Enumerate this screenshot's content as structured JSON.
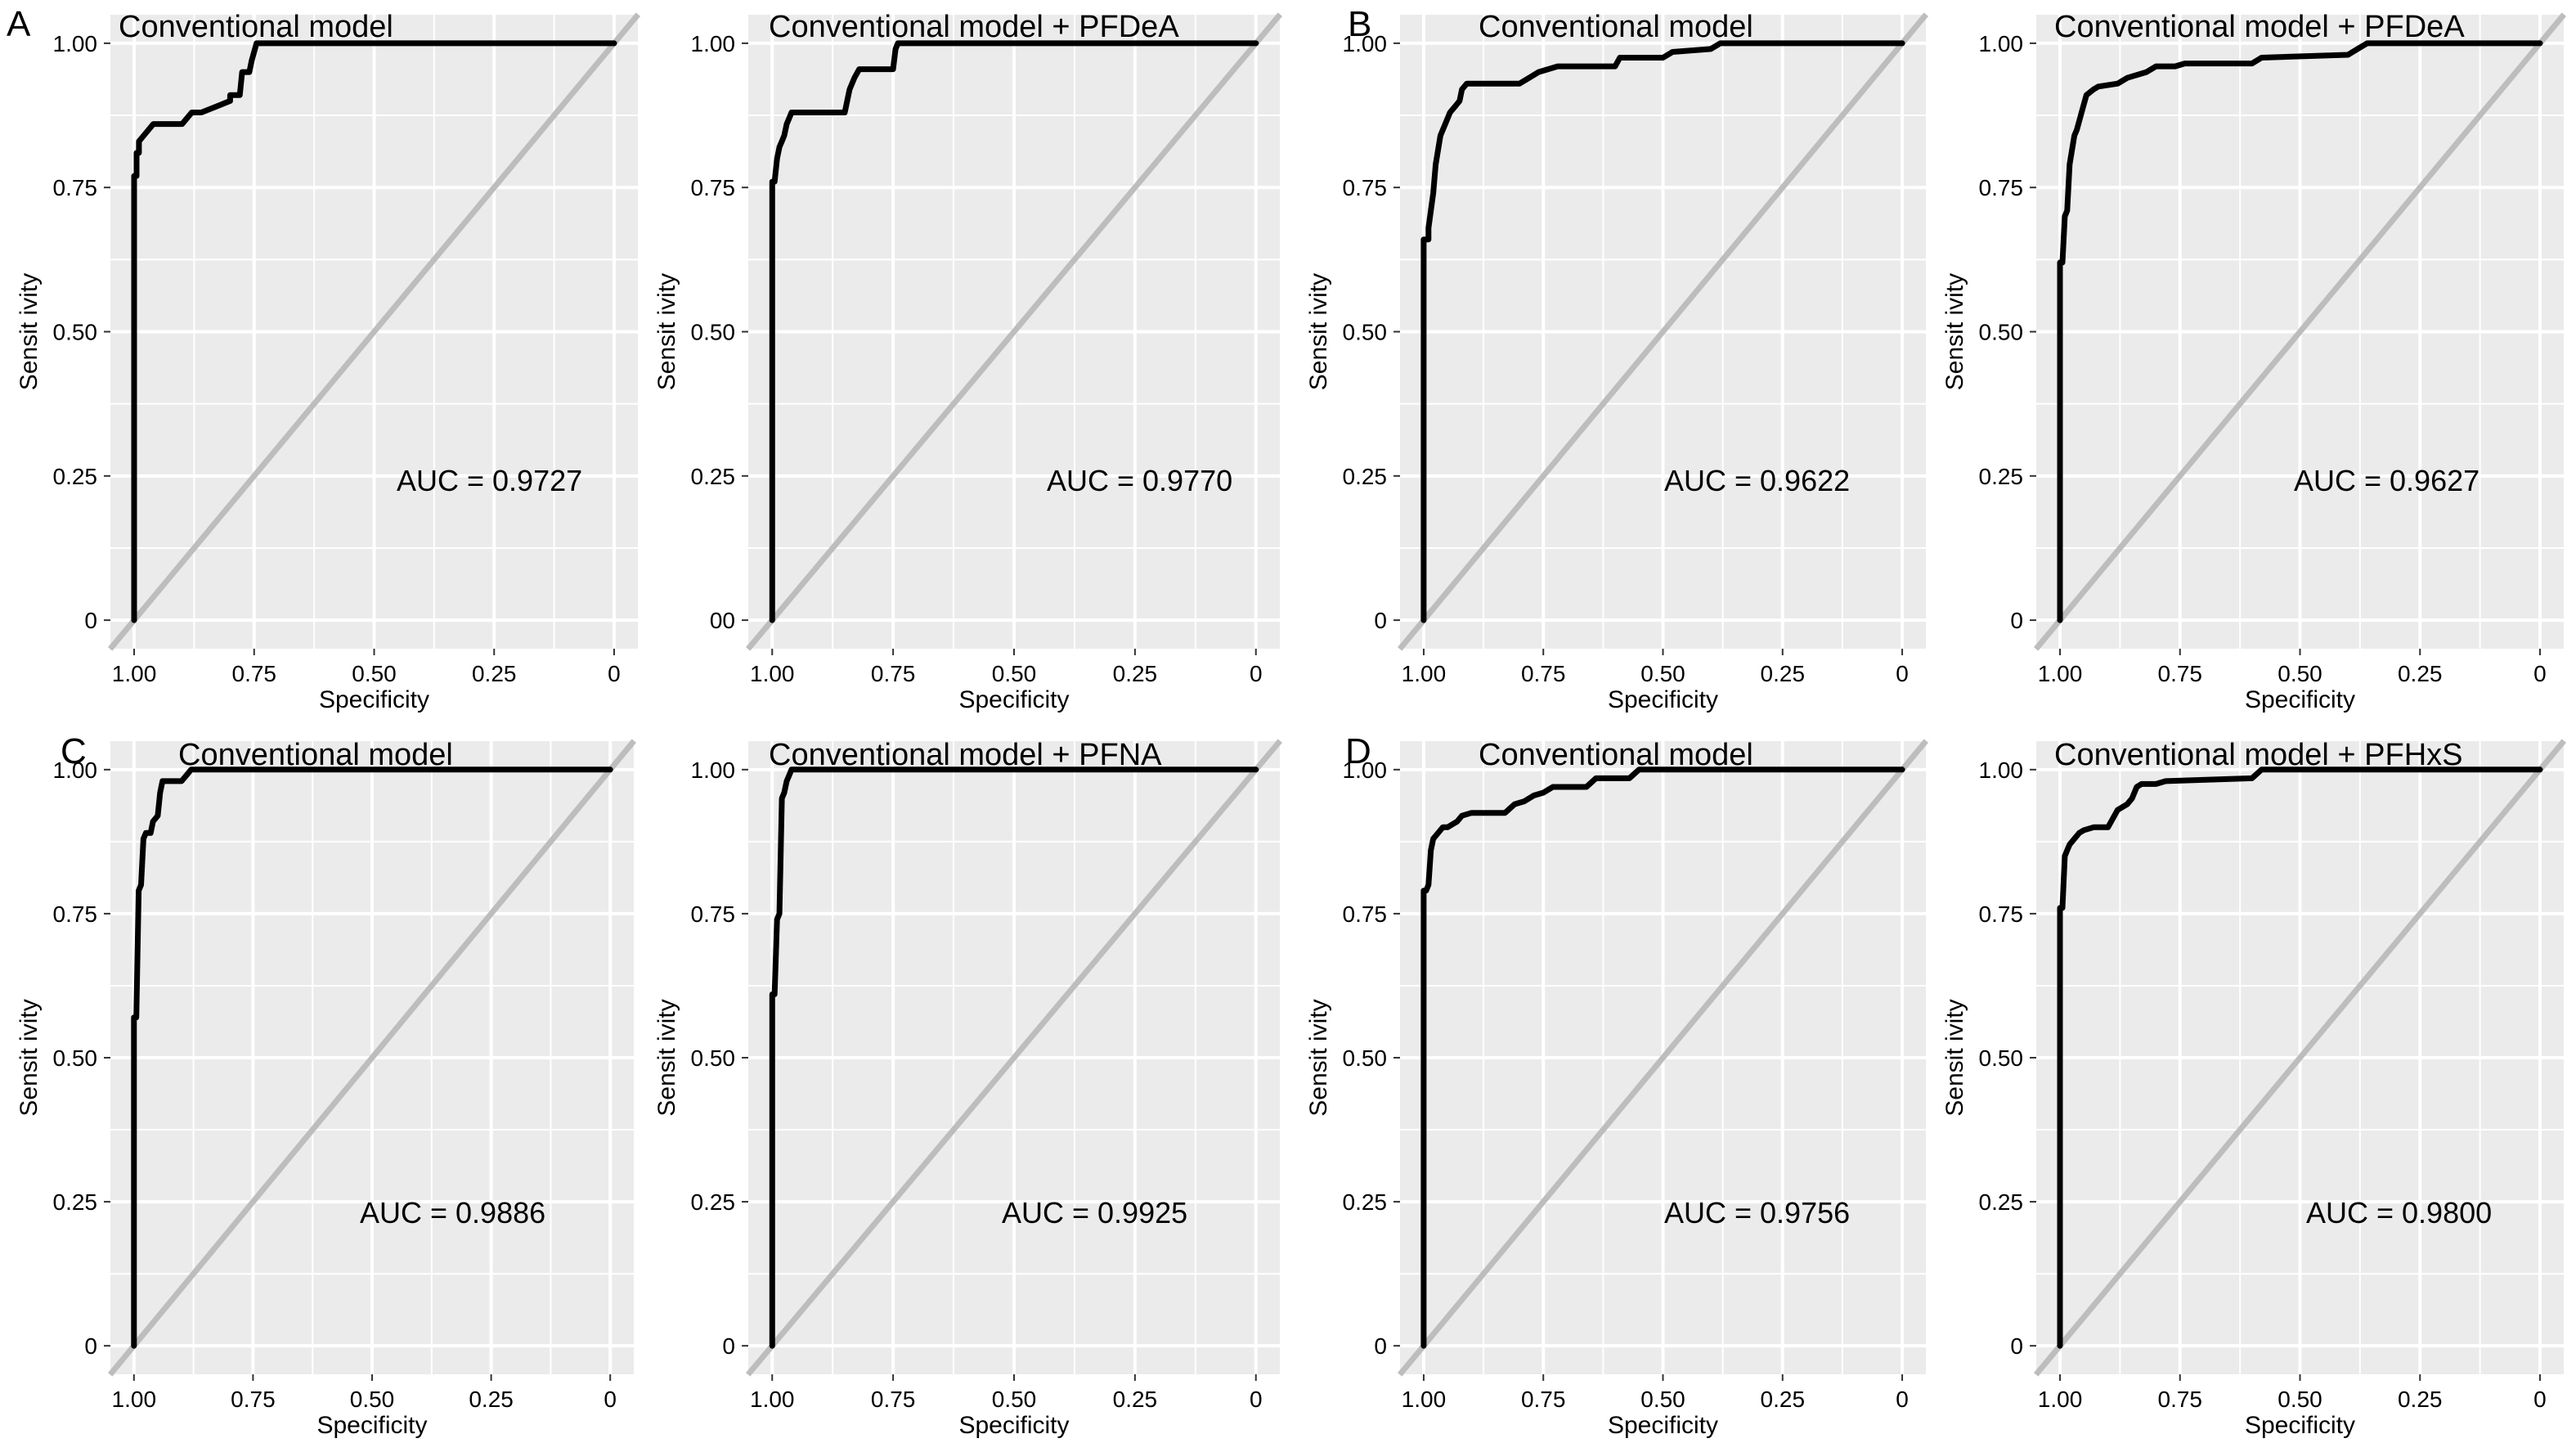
{
  "figure": {
    "panel_letters": [
      "A",
      "B",
      "C",
      "D"
    ],
    "xlabel": "Specificity",
    "ylabel": "Sensit ivity",
    "x_ticks": [
      "1.00",
      "0.75",
      "0.50",
      "0.25",
      "0"
    ],
    "y_ticks": [
      "0",
      "0.25",
      "0.50",
      "0.75",
      "1.00"
    ]
  },
  "colors": {
    "panel_bg": "#ebebeb",
    "grid": "#ffffff",
    "curve": "#000000",
    "diagonal": "#bdbdbd"
  },
  "chart_data": [
    {
      "type": "line",
      "panel": "A",
      "title": "Conventional model",
      "annotation": "AUC = 0.9727",
      "xlabel": "Specificity",
      "ylabel": "Sensit ivity",
      "xlim": [
        1.0,
        0.0
      ],
      "ylim": [
        0.0,
        1.0
      ],
      "grid": true,
      "y_tick_labels": [
        "0",
        "0.25",
        "0.50",
        "0.75",
        "1.00"
      ],
      "series": [
        {
          "x": [
            1.0,
            1.0,
            0.995,
            0.995,
            0.99,
            0.99,
            0.98,
            0.97,
            0.96,
            0.94,
            0.9,
            0.88,
            0.86,
            0.83,
            0.8,
            0.8,
            0.78,
            0.775,
            0.76,
            0.755,
            0.745,
            0.0
          ],
          "y": [
            0.0,
            0.77,
            0.77,
            0.81,
            0.81,
            0.83,
            0.84,
            0.85,
            0.86,
            0.86,
            0.86,
            0.88,
            0.88,
            0.89,
            0.9,
            0.91,
            0.91,
            0.95,
            0.95,
            0.97,
            1.0,
            1.0
          ]
        }
      ]
    },
    {
      "type": "line",
      "panel": "A",
      "title": "Conventional model + PFDeA",
      "annotation": "AUC = 0.9770",
      "xlabel": "Specificity",
      "ylabel": "Sensit ivity",
      "xlim": [
        1.0,
        0.0
      ],
      "ylim": [
        0.0,
        1.0
      ],
      "grid": true,
      "y_tick_labels": [
        "00",
        "0.25",
        "0.50",
        "0.75",
        "1.00"
      ],
      "series": [
        {
          "x": [
            1.0,
            1.0,
            0.995,
            0.99,
            0.985,
            0.98,
            0.975,
            0.97,
            0.965,
            0.96,
            0.95,
            0.85,
            0.84,
            0.83,
            0.82,
            0.75,
            0.745,
            0.74,
            0.0
          ],
          "y": [
            0.0,
            0.76,
            0.76,
            0.8,
            0.82,
            0.83,
            0.84,
            0.86,
            0.87,
            0.88,
            0.88,
            0.88,
            0.92,
            0.94,
            0.955,
            0.955,
            0.99,
            1.0,
            1.0
          ]
        }
      ]
    },
    {
      "type": "line",
      "panel": "B",
      "title": "Conventional model",
      "annotation": "AUC = 0.9622",
      "xlabel": "Specificity",
      "ylabel": "Sensit ivity",
      "xlim": [
        1.0,
        0.0
      ],
      "ylim": [
        0.0,
        1.0
      ],
      "grid": true,
      "y_tick_labels": [
        "0",
        "0.25",
        "0.50",
        "0.75",
        "1.00"
      ],
      "series": [
        {
          "x": [
            1.0,
            1.0,
            0.99,
            0.99,
            0.98,
            0.975,
            0.965,
            0.955,
            0.945,
            0.935,
            0.925,
            0.92,
            0.91,
            0.8,
            0.78,
            0.76,
            0.74,
            0.72,
            0.6,
            0.59,
            0.5,
            0.48,
            0.4,
            0.38,
            0.0
          ],
          "y": [
            0.0,
            0.66,
            0.66,
            0.68,
            0.74,
            0.79,
            0.84,
            0.86,
            0.88,
            0.89,
            0.9,
            0.92,
            0.93,
            0.93,
            0.94,
            0.95,
            0.955,
            0.96,
            0.96,
            0.975,
            0.975,
            0.985,
            0.99,
            1.0,
            1.0
          ]
        }
      ]
    },
    {
      "type": "line",
      "panel": "B",
      "title": "Conventional model + PFDeA",
      "annotation": "AUC = 0.9627",
      "xlabel": "Specificity",
      "ylabel": "Sensit ivity",
      "xlim": [
        1.0,
        0.0
      ],
      "ylim": [
        0.0,
        1.0
      ],
      "grid": true,
      "y_tick_labels": [
        "0",
        "0.25",
        "0.50",
        "0.75",
        "1.00"
      ],
      "series": [
        {
          "x": [
            1.0,
            1.0,
            0.995,
            0.99,
            0.985,
            0.98,
            0.97,
            0.965,
            0.955,
            0.945,
            0.93,
            0.92,
            0.88,
            0.86,
            0.82,
            0.8,
            0.76,
            0.74,
            0.6,
            0.58,
            0.4,
            0.38,
            0.36,
            0.0
          ],
          "y": [
            0.0,
            0.62,
            0.62,
            0.7,
            0.71,
            0.79,
            0.84,
            0.85,
            0.88,
            0.91,
            0.92,
            0.925,
            0.93,
            0.94,
            0.95,
            0.96,
            0.96,
            0.965,
            0.965,
            0.975,
            0.98,
            0.99,
            1.0,
            1.0
          ]
        }
      ]
    },
    {
      "type": "line",
      "panel": "C",
      "title": "Conventional model",
      "annotation": "AUC = 0.9886",
      "xlabel": "Specificity",
      "ylabel": "Sensit ivity",
      "xlim": [
        1.0,
        0.0
      ],
      "ylim": [
        0.0,
        1.0
      ],
      "grid": true,
      "y_tick_labels": [
        "0",
        "0.25",
        "0.50",
        "0.75",
        "1.00"
      ],
      "series": [
        {
          "x": [
            1.0,
            1.0,
            0.995,
            0.99,
            0.985,
            0.98,
            0.975,
            0.965,
            0.96,
            0.95,
            0.945,
            0.94,
            0.93,
            0.92,
            0.9,
            0.89,
            0.88,
            0.0
          ],
          "y": [
            0.0,
            0.57,
            0.57,
            0.79,
            0.8,
            0.88,
            0.89,
            0.89,
            0.91,
            0.92,
            0.96,
            0.98,
            0.98,
            0.98,
            0.98,
            0.99,
            1.0,
            1.0
          ]
        }
      ]
    },
    {
      "type": "line",
      "panel": "C",
      "title": "Conventional model + PFNA",
      "annotation": "AUC = 0.9925",
      "xlabel": "Specificity",
      "ylabel": "Sensit ivity",
      "xlim": [
        1.0,
        0.0
      ],
      "ylim": [
        0.0,
        1.0
      ],
      "grid": true,
      "y_tick_labels": [
        "0",
        "0.25",
        "0.50",
        "0.75",
        "1.00"
      ],
      "series": [
        {
          "x": [
            1.0,
            1.0,
            0.995,
            0.99,
            0.985,
            0.98,
            0.975,
            0.97,
            0.965,
            0.96,
            0.0
          ],
          "y": [
            0.0,
            0.61,
            0.61,
            0.74,
            0.75,
            0.95,
            0.96,
            0.98,
            0.99,
            1.0,
            1.0
          ]
        }
      ]
    },
    {
      "type": "line",
      "panel": "D",
      "title": "Conventional model",
      "annotation": "AUC = 0.9756",
      "xlabel": "Specificity",
      "ylabel": "Sensit ivity",
      "xlim": [
        1.0,
        0.0
      ],
      "ylim": [
        0.0,
        1.0
      ],
      "grid": true,
      "y_tick_labels": [
        "0",
        "0.25",
        "0.50",
        "0.75",
        "1.00"
      ],
      "series": [
        {
          "x": [
            1.0,
            1.0,
            0.995,
            0.99,
            0.985,
            0.98,
            0.97,
            0.96,
            0.95,
            0.93,
            0.92,
            0.9,
            0.83,
            0.81,
            0.79,
            0.77,
            0.75,
            0.73,
            0.66,
            0.64,
            0.57,
            0.55,
            0.0
          ],
          "y": [
            0.0,
            0.79,
            0.79,
            0.8,
            0.86,
            0.88,
            0.89,
            0.9,
            0.9,
            0.91,
            0.92,
            0.925,
            0.925,
            0.94,
            0.945,
            0.955,
            0.96,
            0.97,
            0.97,
            0.985,
            0.985,
            1.0,
            1.0
          ]
        }
      ]
    },
    {
      "type": "line",
      "panel": "D",
      "title": "Conventional model + PFHxS",
      "annotation": "AUC = 0.9800",
      "xlabel": "Specificity",
      "ylabel": "Sensit ivity",
      "xlim": [
        1.0,
        0.0
      ],
      "ylim": [
        0.0,
        1.0
      ],
      "grid": true,
      "y_tick_labels": [
        "0",
        "0.25",
        "0.50",
        "0.75",
        "1.00"
      ],
      "series": [
        {
          "x": [
            1.0,
            1.0,
            0.995,
            0.99,
            0.985,
            0.98,
            0.97,
            0.96,
            0.95,
            0.93,
            0.9,
            0.88,
            0.86,
            0.85,
            0.84,
            0.83,
            0.8,
            0.78,
            0.6,
            0.58,
            0.0
          ],
          "y": [
            0.0,
            0.76,
            0.76,
            0.85,
            0.86,
            0.87,
            0.88,
            0.89,
            0.895,
            0.9,
            0.9,
            0.93,
            0.94,
            0.95,
            0.97,
            0.975,
            0.975,
            0.98,
            0.985,
            1.0,
            1.0
          ]
        }
      ]
    }
  ]
}
